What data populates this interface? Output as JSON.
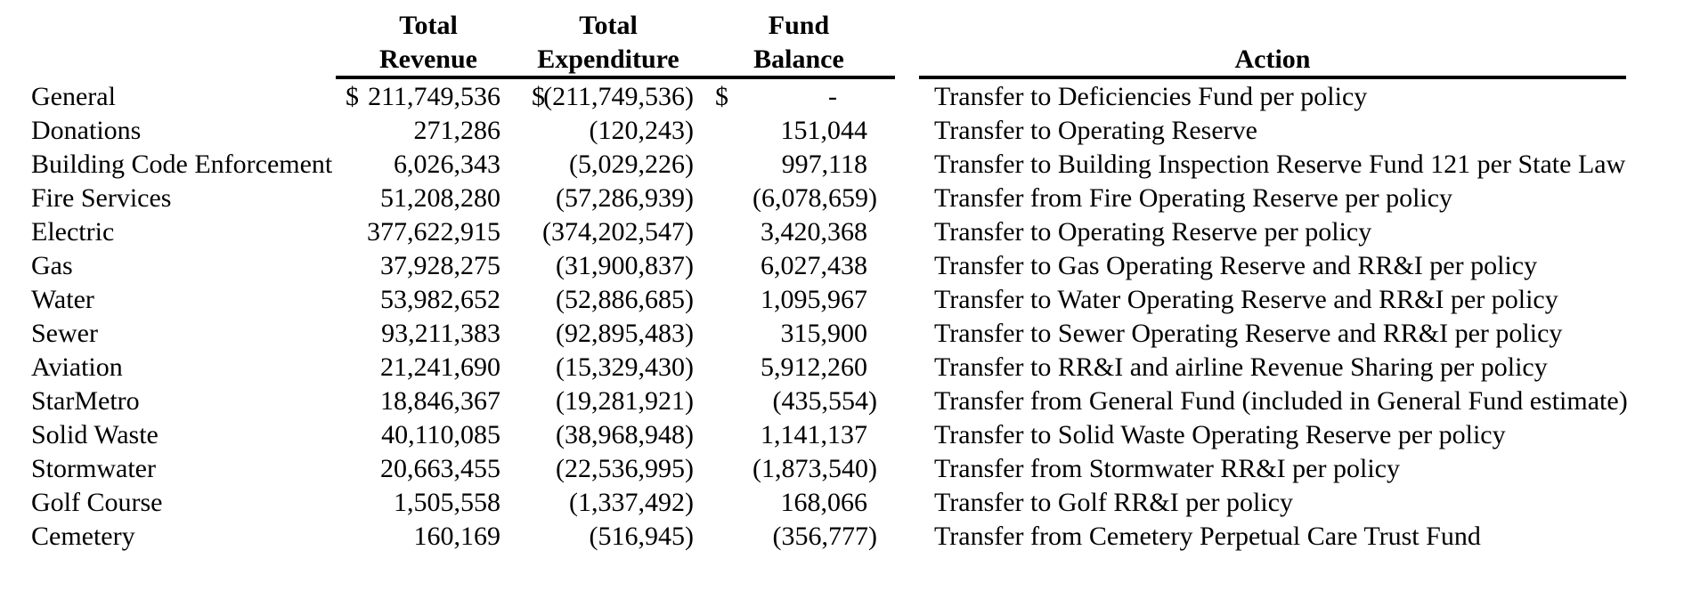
{
  "page": {
    "background_color": "#ffffff",
    "text_color": "#000000"
  },
  "table": {
    "headers": {
      "revenue_line1": "Total",
      "revenue_line2": "Revenue",
      "expenditure_line1": "Total",
      "expenditure_line2": "Expenditure",
      "balance_line1": "Fund",
      "balance_line2": "Balance",
      "action": "Action"
    },
    "rows": [
      {
        "fund": "General",
        "revenue_currency": "$",
        "revenue": "211,749,536",
        "expenditure_currency": "$",
        "expenditure": "(211,749,536)",
        "balance_currency": "$",
        "balance": "-",
        "action": "Transfer to Deficiencies Fund per policy"
      },
      {
        "fund": "Donations",
        "revenue_currency": "",
        "revenue": "271,286",
        "expenditure_currency": "",
        "expenditure": "(120,243)",
        "balance_currency": "",
        "balance": "151,044",
        "action": "Transfer to Operating Reserve"
      },
      {
        "fund": "Building Code Enforcement",
        "revenue_currency": "",
        "revenue": "6,026,343",
        "expenditure_currency": "",
        "expenditure": "(5,029,226)",
        "balance_currency": "",
        "balance": "997,118",
        "action": "Transfer to Building Inspection Reserve Fund 121 per State Law"
      },
      {
        "fund": "Fire Services",
        "revenue_currency": "",
        "revenue": "51,208,280",
        "expenditure_currency": "",
        "expenditure": "(57,286,939)",
        "balance_currency": "",
        "balance": "(6,078,659)",
        "action": "Transfer from Fire Operating Reserve per policy"
      },
      {
        "fund": "Electric",
        "revenue_currency": "",
        "revenue": "377,622,915",
        "expenditure_currency": "",
        "expenditure": "(374,202,547)",
        "balance_currency": "",
        "balance": "3,420,368",
        "action": "Transfer to Operating Reserve per policy"
      },
      {
        "fund": "Gas",
        "revenue_currency": "",
        "revenue": "37,928,275",
        "expenditure_currency": "",
        "expenditure": "(31,900,837)",
        "balance_currency": "",
        "balance": "6,027,438",
        "action": "Transfer to Gas Operating Reserve and RR&I per policy"
      },
      {
        "fund": "Water",
        "revenue_currency": "",
        "revenue": "53,982,652",
        "expenditure_currency": "",
        "expenditure": "(52,886,685)",
        "balance_currency": "",
        "balance": "1,095,967",
        "action": "Transfer to Water Operating Reserve and RR&I per policy"
      },
      {
        "fund": "Sewer",
        "revenue_currency": "",
        "revenue": "93,211,383",
        "expenditure_currency": "",
        "expenditure": "(92,895,483)",
        "balance_currency": "",
        "balance": "315,900",
        "action": "Transfer to Sewer Operating Reserve and RR&I per policy"
      },
      {
        "fund": "Aviation",
        "revenue_currency": "",
        "revenue": "21,241,690",
        "expenditure_currency": "",
        "expenditure": "(15,329,430)",
        "balance_currency": "",
        "balance": "5,912,260",
        "action": "Transfer to RR&I and airline Revenue Sharing per policy"
      },
      {
        "fund": "StarMetro",
        "revenue_currency": "",
        "revenue": "18,846,367",
        "expenditure_currency": "",
        "expenditure": "(19,281,921)",
        "balance_currency": "",
        "balance": "(435,554)",
        "action": "Transfer from General Fund (included in General Fund estimate)"
      },
      {
        "fund": "Solid Waste",
        "revenue_currency": "",
        "revenue": "40,110,085",
        "expenditure_currency": "",
        "expenditure": "(38,968,948)",
        "balance_currency": "",
        "balance": "1,141,137",
        "action": "Transfer to Solid Waste Operating Reserve per policy"
      },
      {
        "fund": "Stormwater",
        "revenue_currency": "",
        "revenue": "20,663,455",
        "expenditure_currency": "",
        "expenditure": "(22,536,995)",
        "balance_currency": "",
        "balance": "(1,873,540)",
        "action": "Transfer from Stormwater RR&I per policy"
      },
      {
        "fund": "Golf Course",
        "revenue_currency": "",
        "revenue": "1,505,558",
        "expenditure_currency": "",
        "expenditure": "(1,337,492)",
        "balance_currency": "",
        "balance": "168,066",
        "action": "Transfer to Golf RR&I per policy"
      },
      {
        "fund": "Cemetery",
        "revenue_currency": "",
        "revenue": "160,169",
        "expenditure_currency": "",
        "expenditure": "(516,945)",
        "balance_currency": "",
        "balance": "(356,777)",
        "action": "Transfer from Cemetery Perpetual Care Trust Fund"
      }
    ]
  }
}
